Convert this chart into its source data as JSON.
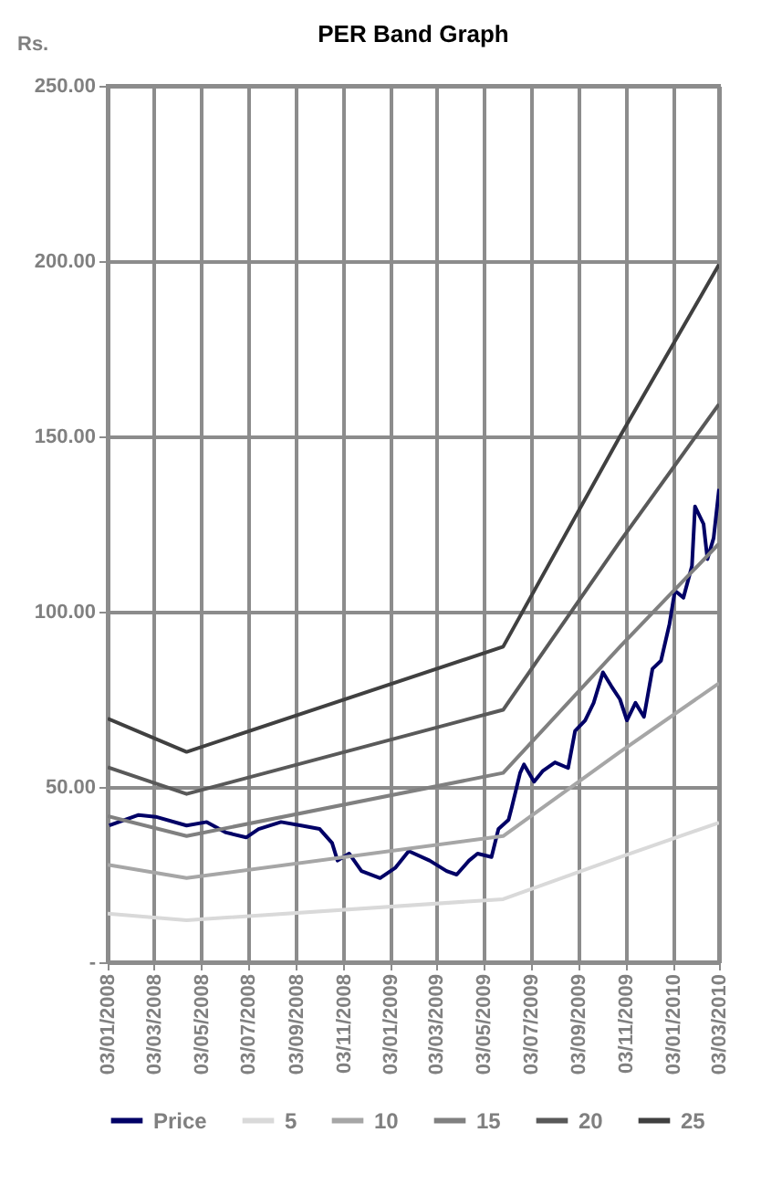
{
  "chart_data": {
    "type": "line",
    "title": "PER Band Graph",
    "ylabel": "Rs.",
    "legend": "bottom",
    "grid": true,
    "line_style": "solid",
    "marker": "none",
    "xlim": [
      "2008-01-03",
      "2010-03-03"
    ],
    "xticks": [
      {
        "value": "2008-01-03",
        "label": "03/01/2008"
      },
      {
        "value": "2008-03-03",
        "label": "03/03/2008"
      },
      {
        "value": "2008-05-03",
        "label": "03/05/2008"
      },
      {
        "value": "2008-07-03",
        "label": "03/07/2008"
      },
      {
        "value": "2008-09-03",
        "label": "03/09/2008"
      },
      {
        "value": "2008-11-03",
        "label": "03/11/2008"
      },
      {
        "value": "2009-01-03",
        "label": "03/01/2009"
      },
      {
        "value": "2009-03-03",
        "label": "03/03/2009"
      },
      {
        "value": "2009-05-03",
        "label": "03/05/2009"
      },
      {
        "value": "2009-07-03",
        "label": "03/07/2009"
      },
      {
        "value": "2009-09-03",
        "label": "03/09/2009"
      },
      {
        "value": "2009-11-03",
        "label": "03/11/2009"
      },
      {
        "value": "2010-01-03",
        "label": "03/01/2010"
      },
      {
        "value": "2010-03-03",
        "label": "03/03/2010"
      }
    ],
    "ylim": [
      0,
      250
    ],
    "yticks": [
      {
        "value": 0,
        "label": "-"
      },
      {
        "value": 50,
        "label": "50.00"
      },
      {
        "value": 100,
        "label": "100.00"
      },
      {
        "value": 150,
        "label": "150.00"
      },
      {
        "value": 200,
        "label": "200.00"
      },
      {
        "value": 250,
        "label": "250.00"
      }
    ],
    "series": [
      {
        "name": "Price",
        "color": "#000066",
        "x": [
          "2008-01-05",
          "2008-02-12",
          "2008-03-05",
          "2008-04-14",
          "2008-05-10",
          "2008-06-04",
          "2008-06-30",
          "2008-07-16",
          "2008-08-14",
          "2008-09-09",
          "2008-10-03",
          "2008-10-19",
          "2008-10-26",
          "2008-11-10",
          "2008-11-26",
          "2008-12-20",
          "2009-01-09",
          "2009-01-26",
          "2009-02-22",
          "2009-03-16",
          "2009-03-29",
          "2009-04-14",
          "2009-04-25",
          "2009-05-13",
          "2009-05-22",
          "2009-06-04",
          "2009-06-08",
          "2009-06-19",
          "2009-06-24",
          "2009-07-07",
          "2009-07-18",
          "2009-08-03",
          "2009-08-20",
          "2009-08-29",
          "2009-09-11",
          "2009-09-22",
          "2009-10-04",
          "2009-10-15",
          "2009-10-26",
          "2009-11-04",
          "2009-11-15",
          "2009-11-26",
          "2009-12-07",
          "2009-12-18",
          "2009-12-29",
          "2010-01-05",
          "2010-01-16",
          "2010-01-27",
          "2010-01-31",
          "2010-02-11",
          "2010-02-16",
          "2010-02-24",
          "2010-03-03"
        ],
        "values": [
          39,
          42,
          41.5,
          39,
          40,
          37,
          35.6,
          38,
          40,
          39,
          38,
          34,
          29,
          31,
          26,
          24,
          27,
          31.7,
          29,
          26,
          25,
          29,
          31,
          30,
          38,
          40.6,
          44,
          54,
          56.4,
          51.5,
          54.5,
          57,
          55.4,
          66,
          69,
          74,
          82.7,
          78.7,
          75,
          69,
          74,
          70,
          83.7,
          86,
          96.5,
          106,
          104,
          113,
          130,
          125,
          115,
          121,
          135
        ]
      },
      {
        "name": "5",
        "color": "#d9d9d9",
        "x": [
          "2008-01-03",
          "2008-04-14",
          "2009-05-28",
          "2009-10-26",
          "2010-03-03"
        ],
        "values": [
          13.9,
          12,
          18,
          30,
          39.8
        ]
      },
      {
        "name": "10",
        "color": "#a6a6a6",
        "x": [
          "2008-01-03",
          "2008-04-14",
          "2009-05-28",
          "2009-10-26",
          "2010-03-03"
        ],
        "values": [
          27.8,
          24,
          36,
          60,
          79.6
        ]
      },
      {
        "name": "15",
        "color": "#808080",
        "x": [
          "2008-01-03",
          "2008-04-14",
          "2009-05-28",
          "2009-10-26",
          "2010-03-03"
        ],
        "values": [
          41.7,
          36,
          54,
          90,
          119.4
        ]
      },
      {
        "name": "20",
        "color": "#595959",
        "x": [
          "2008-01-03",
          "2008-04-14",
          "2009-05-28",
          "2009-10-26",
          "2010-03-03"
        ],
        "values": [
          55.6,
          48,
          72,
          120,
          159.2
        ]
      },
      {
        "name": "25",
        "color": "#404040",
        "x": [
          "2008-01-03",
          "2008-04-14",
          "2009-05-28",
          "2009-10-26",
          "2010-03-03"
        ],
        "values": [
          69.5,
          60,
          90,
          150,
          199
        ]
      }
    ]
  }
}
